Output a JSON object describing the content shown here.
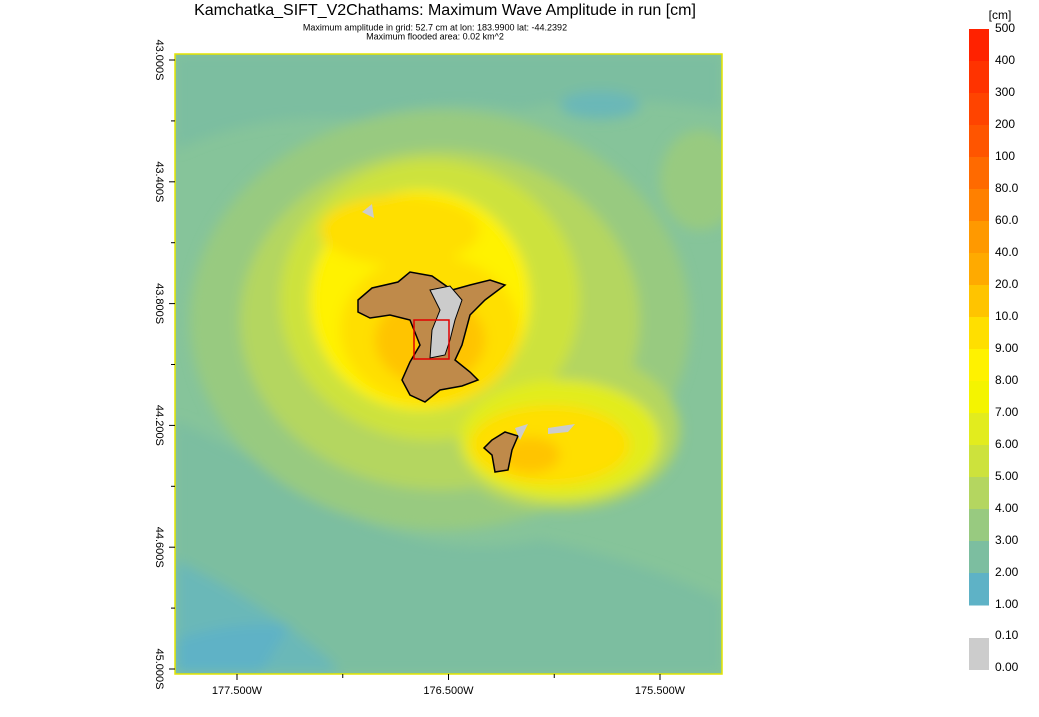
{
  "header": {
    "title": "Kamchatka_SIFT_V2Chathams: Maximum Wave Amplitude in run [cm]",
    "subtitle_lines": [
      "Maximum amplitude in grid: 52.7 cm at lon: 183.9900 lat: -44.2392",
      "Maximum flooded area: 0.02 km^2"
    ]
  },
  "map": {
    "y_tick_labels": [
      "43.000S",
      "43.400S",
      "43.800S",
      "44.200S",
      "44.600S",
      "45.000S"
    ],
    "x_tick_labels": [
      "177.500W",
      "176.500W",
      "175.500W"
    ]
  },
  "colorbar": {
    "unit": "[cm]",
    "levels": [
      "500",
      "400",
      "300",
      "200",
      "100",
      "80.0",
      "60.0",
      "40.0",
      "20.0",
      "10.0",
      "9.00",
      "8.00",
      "7.00",
      "6.00",
      "5.00",
      "4.00",
      "3.00",
      "2.00",
      "1.00"
    ],
    "colors": [
      "#ff2200",
      "#ff3300",
      "#ff4400",
      "#ff5500",
      "#ff6a00",
      "#ff8000",
      "#ff9900",
      "#ffaa00",
      "#ffc400",
      "#ffdf00",
      "#fff200",
      "#f4f400",
      "#e2ec1e",
      "#cde23c",
      "#b4d660",
      "#98ca80",
      "#7cbea0",
      "#5eb2c6"
    ],
    "dry_levels": [
      "0.10",
      "0.00"
    ],
    "dry_color": "#cccccc"
  }
}
